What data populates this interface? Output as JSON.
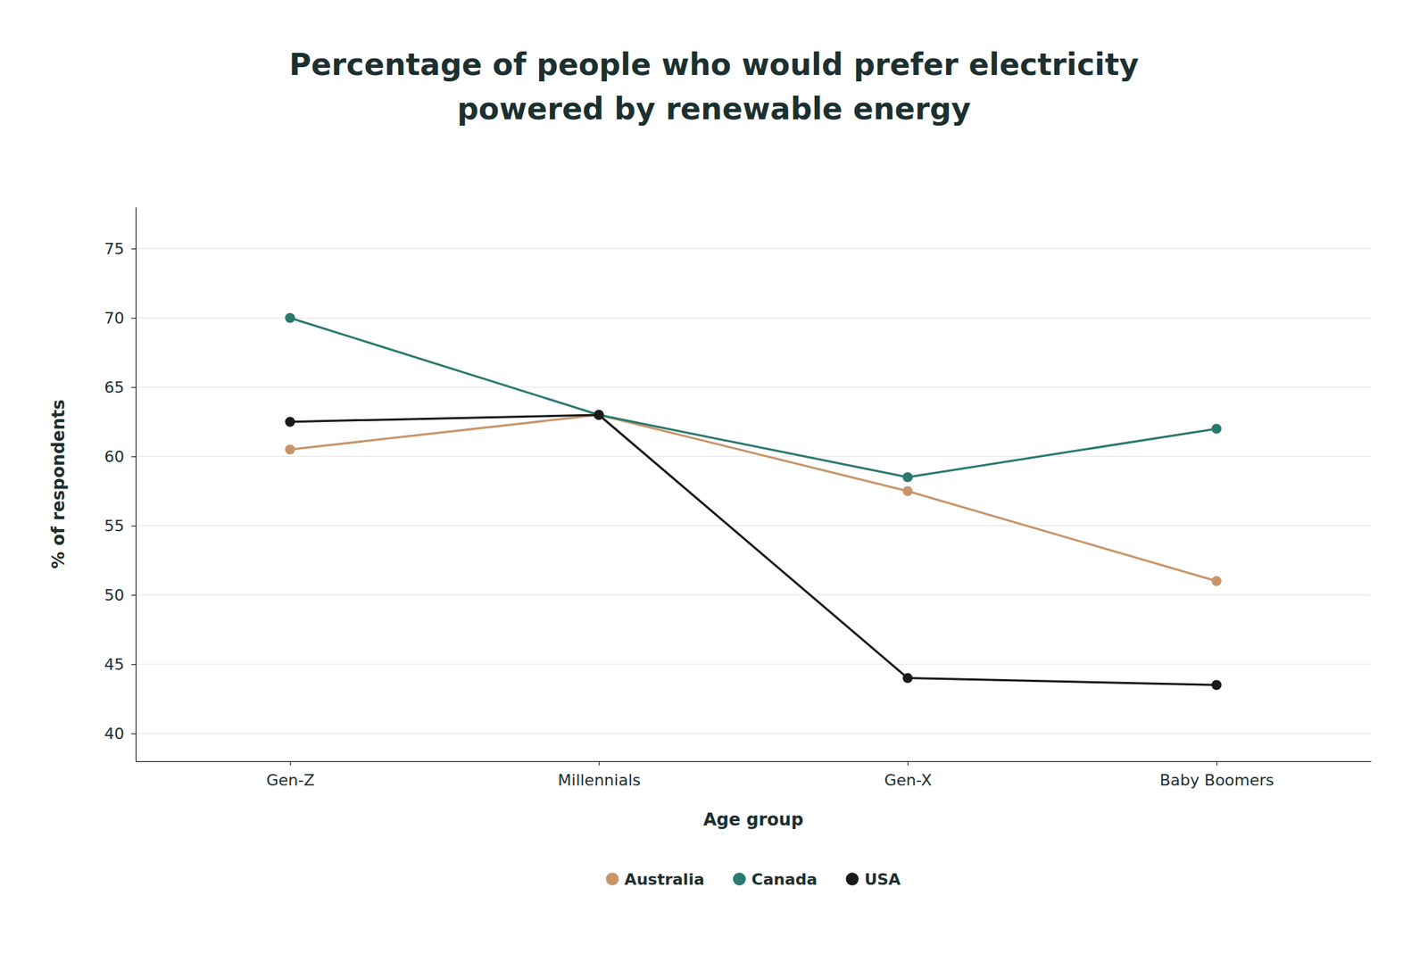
{
  "chart_data": {
    "type": "line",
    "title": [
      "Percentage of people who would prefer electricity",
      "powered by renewable energy"
    ],
    "x_label": "Age group",
    "y_label": "% of respondents",
    "categories": [
      "Gen-Z",
      "Millennials",
      "Gen-X",
      "Baby Boomers"
    ],
    "series": [
      {
        "name": "Australia",
        "color": "#C8956A",
        "marker": "circle",
        "values": [
          60.5,
          63.0,
          57.5,
          51.0
        ]
      },
      {
        "name": "Canada",
        "color": "#2A7A6E",
        "marker": "circle",
        "values": [
          70.0,
          63.0,
          58.5,
          62.0
        ]
      },
      {
        "name": "USA",
        "color": "#1A1A1A",
        "marker": "circle",
        "values": [
          62.5,
          63.0,
          44.0,
          43.5
        ]
      }
    ],
    "ylim": [
      38,
      78
    ],
    "yticks": [
      40,
      45,
      50,
      55,
      60,
      65,
      70,
      75
    ],
    "grid": true,
    "legend": "bottom"
  }
}
